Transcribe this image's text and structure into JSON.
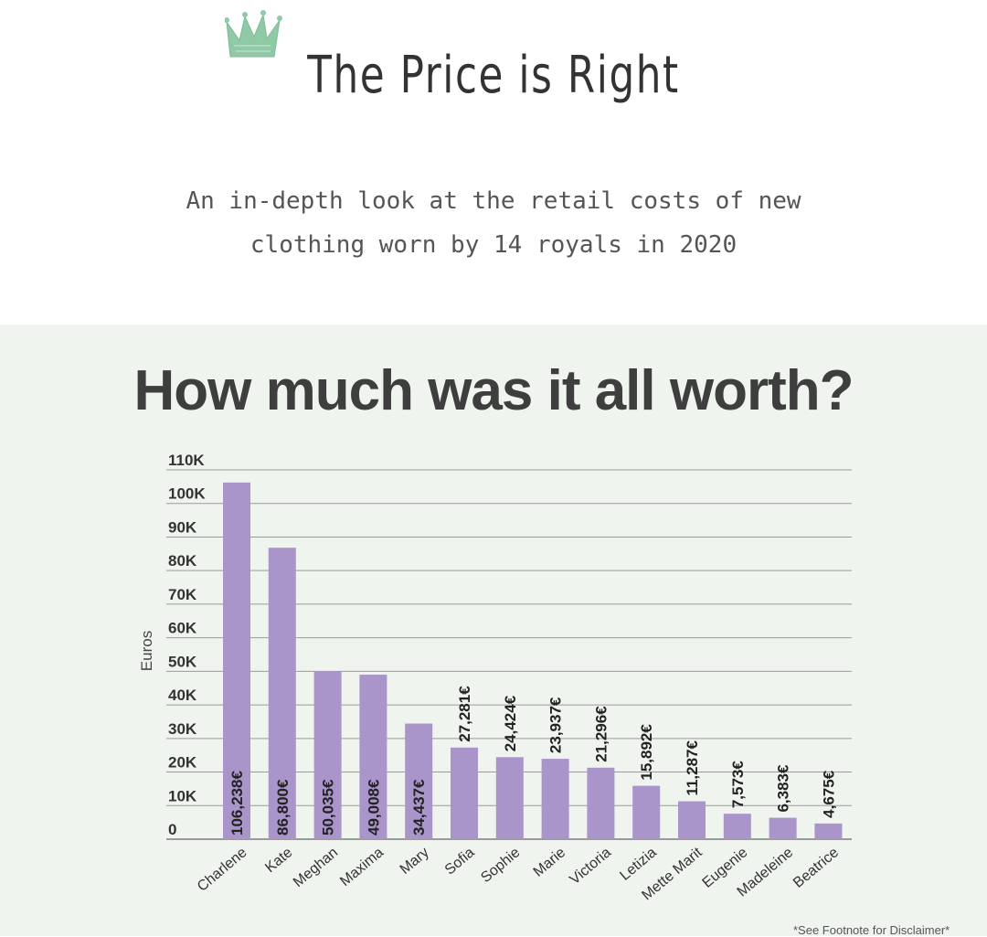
{
  "header": {
    "title": "The Price is Right",
    "subtitle_line1": "An in-depth look at the retail costs of new",
    "subtitle_line2": "clothing worn by 14 royals in 2020"
  },
  "section": {
    "title": "How much was it all worth?",
    "footnote": "*See Footnote for Disclaimer*"
  },
  "colors": {
    "bar": "#a995c9",
    "panel_bg": "#eff4ef",
    "crown": "#8fc9a5",
    "text": "#333333"
  },
  "icons": {
    "crown": "crown-icon"
  },
  "chart_data": {
    "type": "bar",
    "categories": [
      "Charlene",
      "Kate",
      "Meghan",
      "Maxima",
      "Mary",
      "Sofia",
      "Sophie",
      "Marie",
      "Victoria",
      "Letizia",
      "Mette Marit",
      "Eugenie",
      "Madeleine",
      "Beatrice"
    ],
    "values": [
      106238,
      86800,
      50035,
      49008,
      34437,
      27281,
      24424,
      23937,
      21296,
      15892,
      11287,
      7573,
      6383,
      4675
    ],
    "data_labels": [
      "106,238€",
      "86,800€",
      "50,035€",
      "49,008€",
      "34,437€",
      "27,281€",
      "24,424€",
      "23,937€",
      "21,296€",
      "15,892€",
      "11,287€",
      "7,573€",
      "6,383€",
      "4,675€"
    ],
    "ylabel": "Euros",
    "xlabel": "",
    "ylim": [
      0,
      110000
    ],
    "yticks": [
      0,
      10000,
      20000,
      30000,
      40000,
      50000,
      60000,
      70000,
      80000,
      90000,
      100000,
      110000
    ],
    "ytick_labels": [
      "0",
      "10K",
      "20K",
      "30K",
      "40K",
      "50K",
      "60K",
      "70K",
      "80K",
      "90K",
      "100K",
      "110K"
    ],
    "grid": true,
    "legend": "none"
  }
}
